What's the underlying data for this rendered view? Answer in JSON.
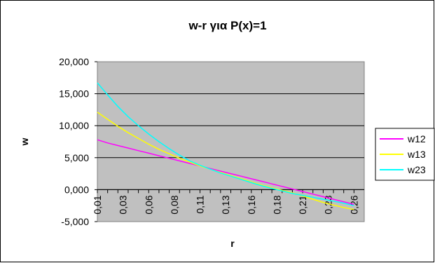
{
  "chart_data": {
    "type": "line",
    "title": "w-r για P(x)=1",
    "xlabel": "r",
    "ylabel": "w",
    "ylim": [
      -5,
      20
    ],
    "y_ticks": [
      "-5,000",
      "0,000",
      "5,000",
      "10,000",
      "15,000",
      "20,000"
    ],
    "x_tick_labels": [
      "0,01",
      "0,03",
      "0,06",
      "0,08",
      "0,11",
      "0,13",
      "0,16",
      "0,18",
      "0,21",
      "0,23",
      "0,26"
    ],
    "x": [
      0.01,
      0.02,
      0.03,
      0.04,
      0.05,
      0.06,
      0.07,
      0.08,
      0.09,
      0.1,
      0.11,
      0.12,
      0.13,
      0.14,
      0.15,
      0.16,
      0.17,
      0.18,
      0.19,
      0.2,
      0.21,
      0.22,
      0.23,
      0.24,
      0.25,
      0.26
    ],
    "x_range": [
      0.01,
      0.27
    ],
    "grid": true,
    "legend": "right",
    "plot_bg": "#c0c0c0",
    "series": [
      {
        "name": "w12",
        "color": "#ff00ff",
        "values": [
          7.8,
          7.3,
          6.9,
          6.5,
          6.1,
          5.7,
          5.3,
          4.9,
          4.5,
          4.1,
          3.7,
          3.3,
          2.9,
          2.5,
          2.1,
          1.7,
          1.3,
          0.9,
          0.5,
          0.1,
          -0.3,
          -0.7,
          -1.1,
          -1.5,
          -1.9,
          -2.3
        ]
      },
      {
        "name": "w13",
        "color": "#ffff00",
        "values": [
          12.1,
          11.0,
          9.9,
          8.9,
          8.0,
          7.1,
          6.3,
          5.6,
          4.9,
          4.3,
          3.7,
          3.2,
          2.7,
          2.2,
          1.7,
          1.2,
          0.7,
          0.3,
          -0.1,
          -0.5,
          -1.0,
          -1.5,
          -2.0,
          -2.4,
          -2.8,
          -3.1
        ]
      },
      {
        "name": "w23",
        "color": "#00ffff",
        "values": [
          16.7,
          14.8,
          13.0,
          11.4,
          10.0,
          8.7,
          7.5,
          6.4,
          5.4,
          4.5,
          3.8,
          3.2,
          2.6,
          2.1,
          1.6,
          1.1,
          0.6,
          0.2,
          -0.2,
          -0.6,
          -0.9,
          -1.2,
          -1.5,
          -1.8,
          -2.1,
          -2.5
        ]
      }
    ]
  }
}
